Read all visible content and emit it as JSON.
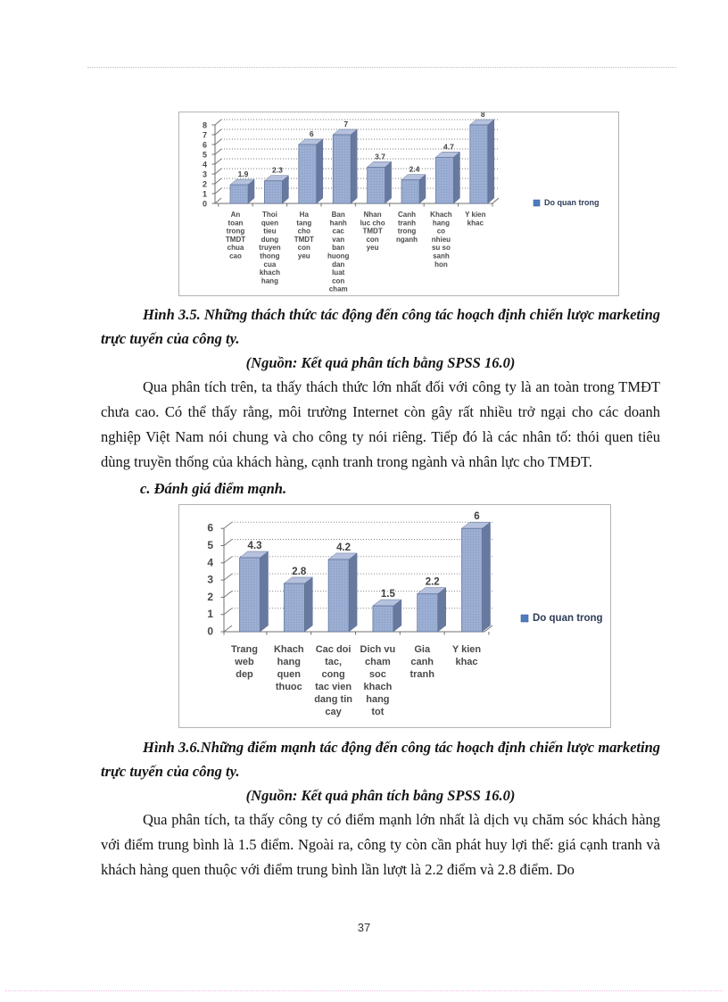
{
  "page": {
    "number": "37"
  },
  "figures": [
    {
      "caption": "Hình 3.5. Những thách thức tác động đến công tác hoạch định chiến lược marketing trực tuyến của công ty.",
      "source": "(Nguồn: Kết quả phân tích bằng SPSS 16.0)"
    },
    {
      "caption": "Hình 3.6.Những điểm mạnh tác động đến công tác hoạch định chiến lược marketing trực tuyến của công ty.",
      "source": "(Nguồn: Kết quả phân tích bằng SPSS 16.0)"
    }
  ],
  "paragraphs": {
    "p1": "Qua phân tích trên, ta thấy thách thức lớn nhất đối với công ty là an toàn trong TMĐT chưa cao. Có thể thấy rằng, môi trường Internet còn gây rất nhiều trở ngại cho các doanh nghiệp Việt Nam nói chung và cho công ty nói riêng. Tiếp đó là các nhân tố: thói quen tiêu dùng truyền thống của khách hàng, cạnh tranh trong ngành và nhân lực cho TMĐT.",
    "p2": "Qua phân tích, ta thấy công ty  có điểm mạnh lớn nhất là dịch vụ chăm sóc khách hàng với điểm trung bình là 1.5 điểm. Ngoài ra, công ty còn cần phát huy lợi thế: giá cạnh tranh và khách hàng quen thuộc với điểm trung bình lần lượt là 2.2 điểm và 2.8 điểm. Do"
  },
  "heading_c": "c. Đánh giá điểm mạnh.",
  "chart_data": [
    {
      "type": "bar",
      "style": "3d",
      "title": "",
      "legend": "Do quan trong",
      "legend_position": "right",
      "grid": true,
      "ylim": [
        0,
        8
      ],
      "ytick_step": 1,
      "categories": [
        "An toan trong TMDT chua cao",
        "Thoi quen tieu dung truyen thong cua khach hang",
        "Ha tang cho TMDT con yeu",
        "Ban hanh cac van ban huong dan luat con cham",
        "Nhan luc cho TMDT con yeu",
        "Canh tranh trong nganh",
        "Khach hang co nhieu su so sanh hon",
        "Y kien khac"
      ],
      "label_lines": [
        [
          "An",
          "toan",
          "trong",
          "TMDT",
          "chua",
          "cao"
        ],
        [
          "Thoi",
          "quen",
          "tieu",
          "dung",
          "truyen",
          "thong",
          "cua",
          "khach",
          "hang"
        ],
        [
          "Ha",
          "tang",
          "cho",
          "TMDT",
          "con",
          "yeu"
        ],
        [
          "Ban",
          "hanh",
          "cac",
          "van",
          "ban",
          "huong",
          "dan",
          "luat",
          "con",
          "cham"
        ],
        [
          "Nhan",
          "luc cho",
          "TMDT",
          "con",
          "yeu"
        ],
        [
          "Canh",
          "tranh",
          "trong",
          "nganh"
        ],
        [
          "Khach",
          "hang",
          "co",
          "nhieu",
          "su so",
          "sanh",
          "hon"
        ],
        [
          "Y kien",
          "khac"
        ]
      ],
      "values": [
        1.9,
        2.3,
        6,
        7,
        3.7,
        2.4,
        4.7,
        8
      ],
      "colors": {
        "bar_front": "#94A8CF",
        "bar_side": "#68799F",
        "bar_top": "#B6C2DD",
        "bar_edge": "#5F6F96",
        "bar_dot": "#CBD6E9",
        "grid": "#7d7d7d",
        "axis": "#707070",
        "label": "#4a4a4a",
        "legend_marker": "#4E7DBE",
        "legend_text": "#2E3C57"
      }
    },
    {
      "type": "bar",
      "style": "3d",
      "title": "",
      "legend": "Do quan trong",
      "legend_position": "right",
      "grid": true,
      "ylim": [
        0,
        6
      ],
      "ytick_step": 1,
      "categories": [
        "Trang web dep",
        "Khach hang quen thuoc",
        "Cac doi tac, cong tac vien dang tin cay",
        "Dich vu cham soc khach hang tot",
        "Gia canh tranh",
        "Y kien khac"
      ],
      "label_lines": [
        [
          "Trang",
          "web",
          "dep"
        ],
        [
          "Khach",
          "hang",
          "quen",
          "thuoc"
        ],
        [
          "Cac doi",
          "tac,",
          "cong",
          "tac vien",
          "dang tin",
          "cay"
        ],
        [
          "Dich vu",
          "cham",
          "soc",
          "khach",
          "hang",
          "tot"
        ],
        [
          "Gia",
          "canh",
          "tranh"
        ],
        [
          "Y kien",
          "khac"
        ]
      ],
      "values": [
        4.3,
        2.8,
        4.2,
        1.5,
        2.2,
        6
      ],
      "colors": {
        "bar_front": "#94A8CF",
        "bar_side": "#68799F",
        "bar_top": "#B6C2DD",
        "bar_edge": "#5F6F96",
        "bar_dot": "#CBD6E9",
        "grid": "#7d7d7d",
        "axis": "#707070",
        "label": "#4a4a4a",
        "legend_marker": "#4E7DBE",
        "legend_text": "#2E3C57"
      }
    }
  ]
}
